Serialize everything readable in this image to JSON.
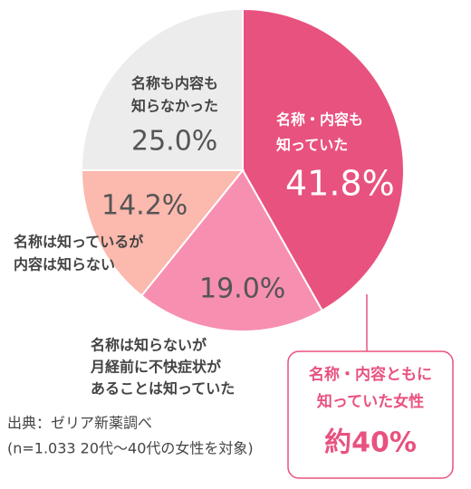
{
  "chart_data": {
    "type": "pie",
    "categories": [
      [
        "名称・内容も",
        "知っていた"
      ],
      [
        "名称は知らないが",
        "月経前に不快症状が",
        "あることは知っていた"
      ],
      [
        "名称は知っているが",
        "内容は知らない"
      ],
      [
        "名称も内容も",
        "知らなかった"
      ]
    ],
    "values": [
      41.8,
      19.0,
      14.2,
      25.0
    ],
    "value_labels": [
      "41.8%",
      "19.0%",
      "14.2%",
      "25.0%"
    ],
    "colors": [
      "#e8527f",
      "#f78fb1",
      "#fcb9ae",
      "#ececec"
    ],
    "callout": {
      "lines": [
        "名称・内容ともに",
        "知っていた女性"
      ],
      "value": "約40%"
    },
    "source": [
      "出典：ゼリア新薬調べ",
      "(n=1.033 20代～40代の女性を対象)"
    ]
  }
}
